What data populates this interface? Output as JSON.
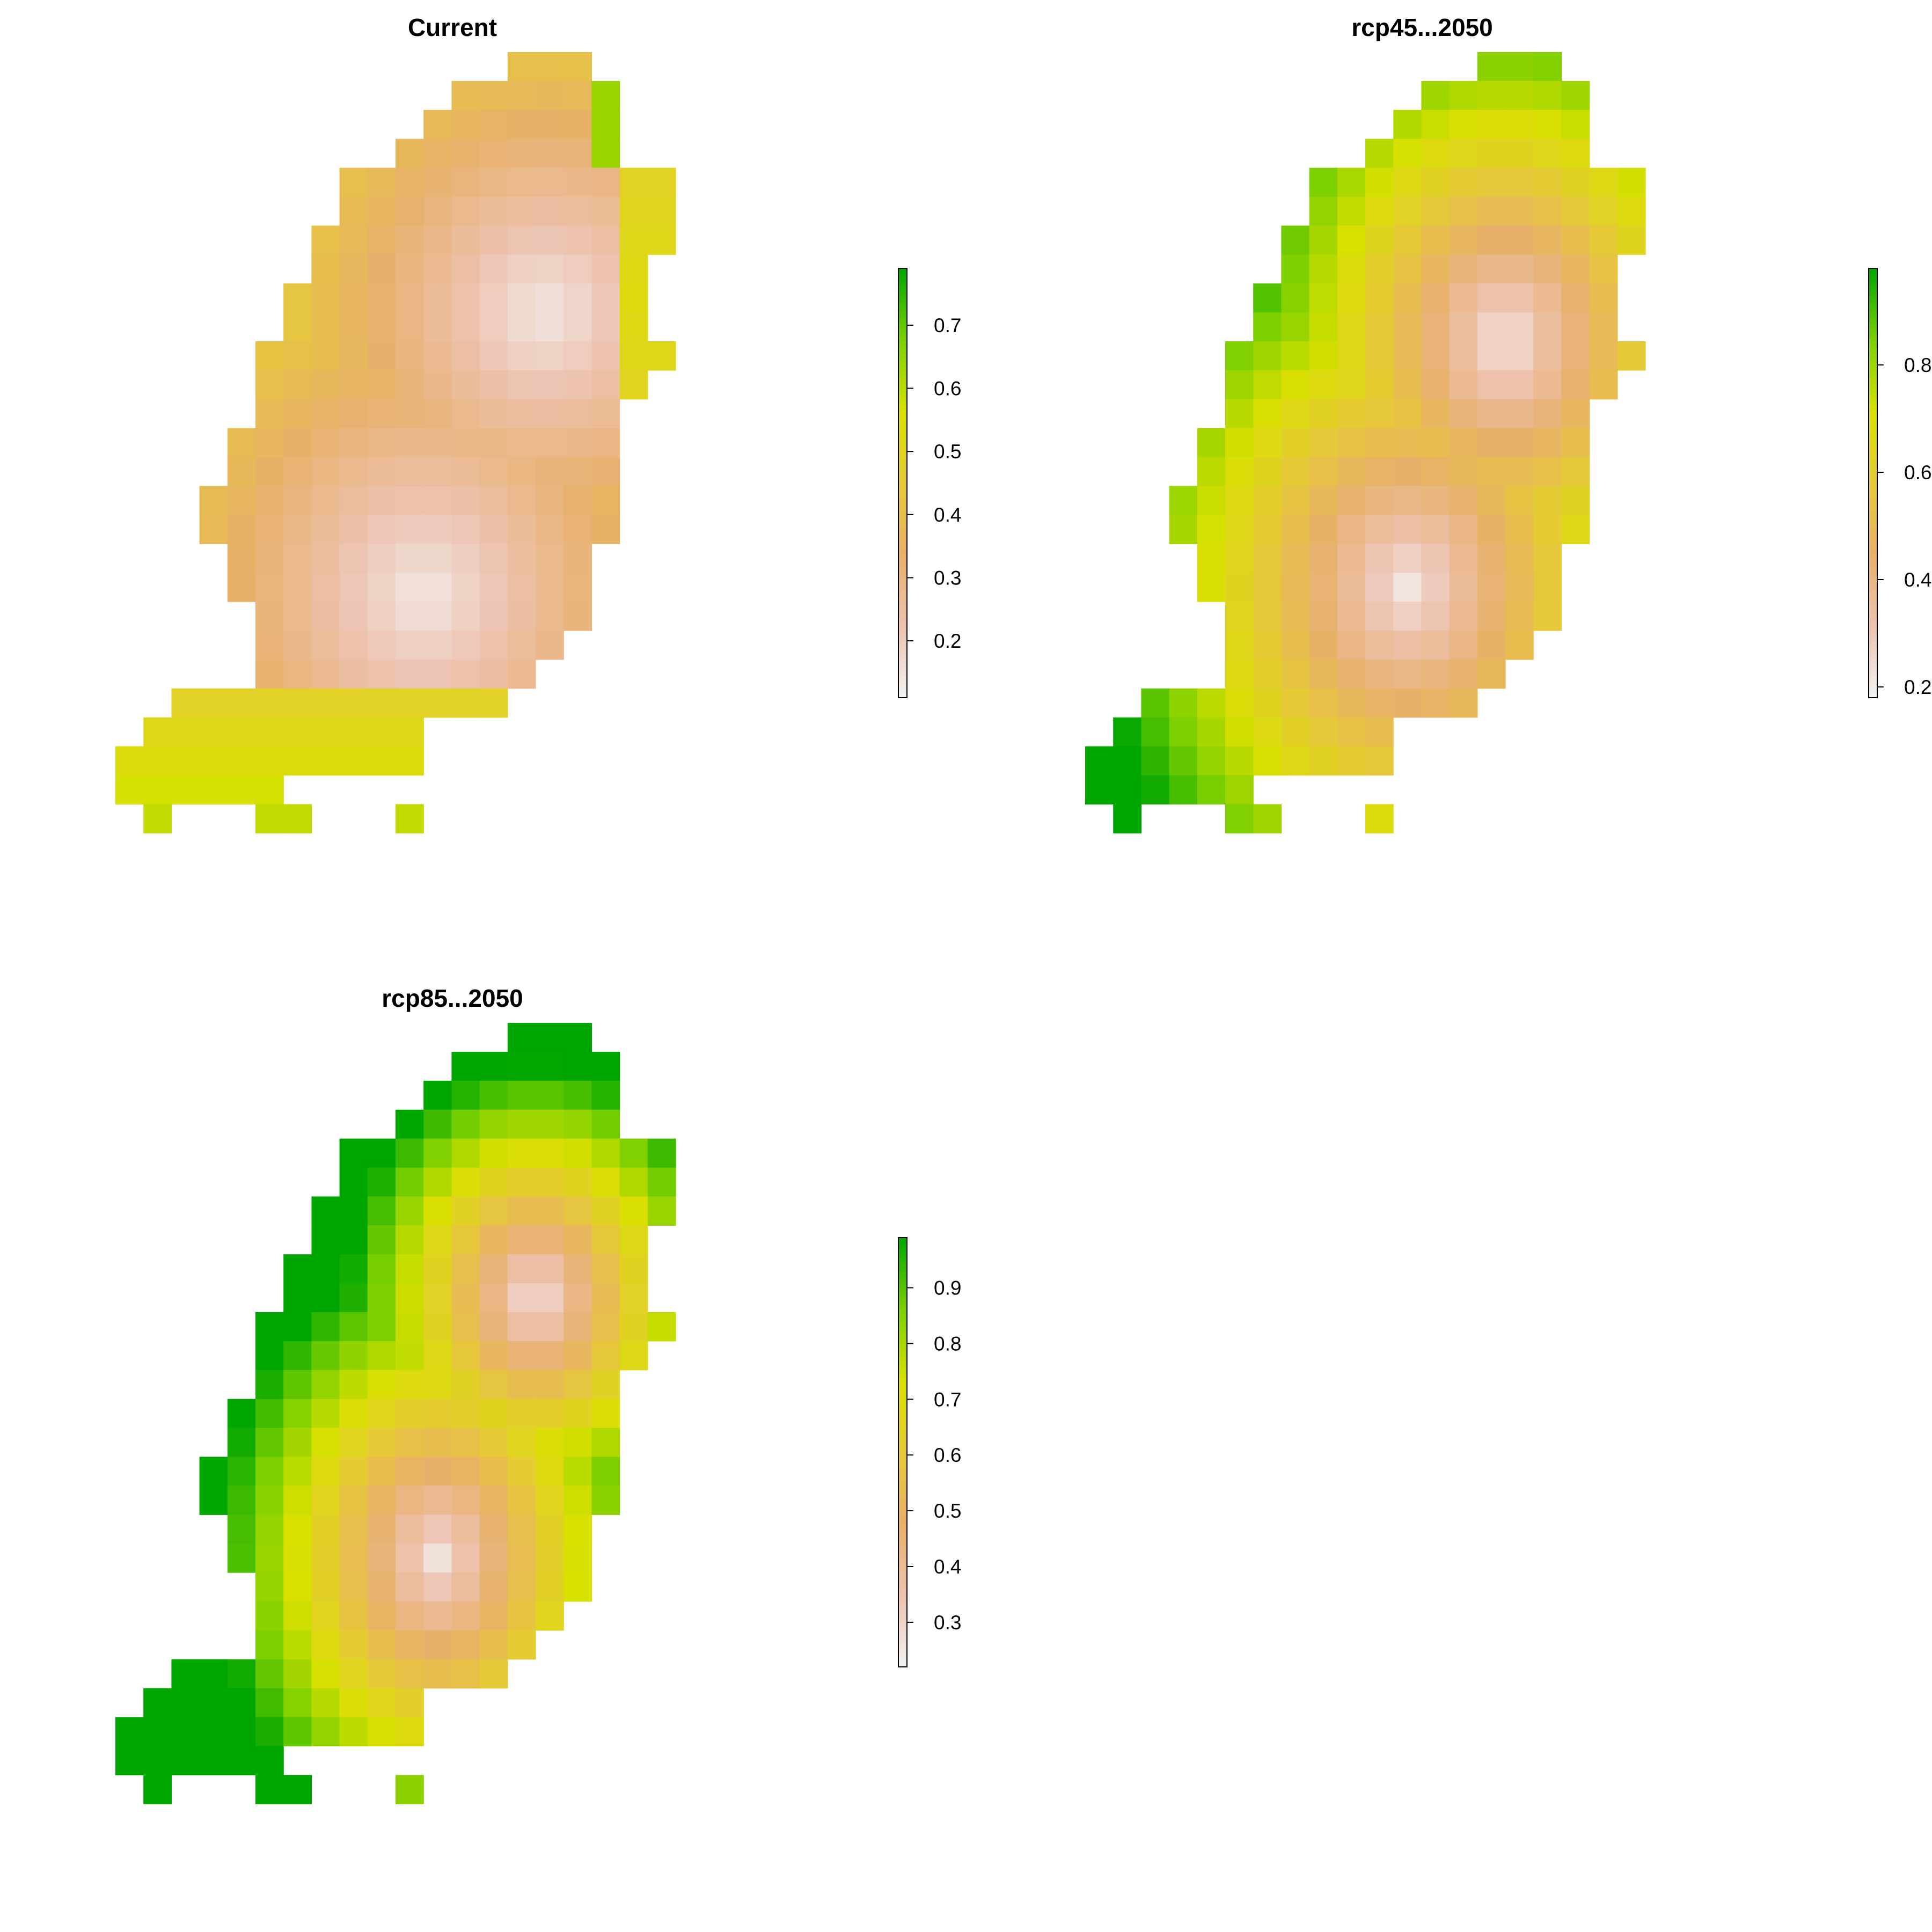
{
  "chart_data": [
    {
      "type": "heatmap",
      "title": "Current",
      "legend": {
        "ticks": [
          "0.2",
          "0.3",
          "0.4",
          "0.5",
          "0.6",
          "0.7"
        ],
        "tick_values": [
          0.2,
          0.3,
          0.4,
          0.5,
          0.6,
          0.7
        ],
        "range": [
          0.11,
          0.79
        ],
        "placement": "right"
      },
      "mode": "current"
    },
    {
      "type": "heatmap",
      "title": "rcp45...2050",
      "legend": {
        "ticks": [
          "0.2",
          "0.4",
          "0.6",
          "0.8"
        ],
        "tick_values": [
          0.2,
          0.4,
          0.6,
          0.8
        ],
        "range": [
          0.18,
          0.98
        ],
        "placement": "right"
      },
      "mode": "rcp45"
    },
    {
      "type": "heatmap",
      "title": "rcp85...2050",
      "legend": {
        "ticks": [
          "0.3",
          "0.4",
          "0.5",
          "0.6",
          "0.7",
          "0.8",
          "0.9"
        ],
        "tick_values": [
          0.3,
          0.4,
          0.5,
          0.6,
          0.7,
          0.8,
          0.9
        ],
        "range": [
          0.22,
          0.99
        ],
        "placement": "right"
      },
      "mode": "rcp85"
    }
  ],
  "colors": {
    "ramp": [
      "#F2F2F2",
      "#EDC2B0",
      "#E8B06A",
      "#E6CA36",
      "#D8E000",
      "#7BCF00",
      "#00A600"
    ]
  }
}
